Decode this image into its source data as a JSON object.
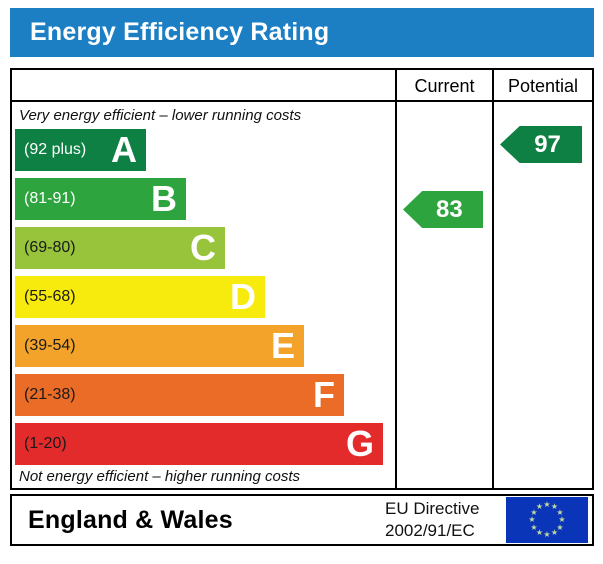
{
  "title": "Energy Efficiency Rating",
  "colors": {
    "title_bar": "#1c7ec3",
    "title_text": "#ffffff",
    "border": "#000000"
  },
  "table": {
    "columns": {
      "current": "Current",
      "potential": "Potential"
    },
    "caption_top": "Very energy efficient – lower running costs",
    "caption_bottom": "Not energy efficient – higher running costs"
  },
  "chart_data": {
    "type": "bar",
    "title": "Energy Efficiency Rating",
    "orientation": "horizontal",
    "bands": [
      {
        "letter": "A",
        "range_label": "(92 plus)",
        "min": 92,
        "max": 100,
        "color": "#0e8043",
        "label_color": "#ffffff"
      },
      {
        "letter": "B",
        "range_label": "(81-91)",
        "min": 81,
        "max": 91,
        "color": "#2ea43e",
        "label_color": "#ffffff"
      },
      {
        "letter": "C",
        "range_label": "(69-80)",
        "min": 69,
        "max": 80,
        "color": "#97c43b",
        "label_color": "#1a1a1a"
      },
      {
        "letter": "D",
        "range_label": "(55-68)",
        "min": 55,
        "max": 68,
        "color": "#f7ea0d",
        "label_color": "#1a1a1a"
      },
      {
        "letter": "E",
        "range_label": "(39-54)",
        "min": 39,
        "max": 54,
        "color": "#f3a22a",
        "label_color": "#1a1a1a"
      },
      {
        "letter": "F",
        "range_label": "(21-38)",
        "min": 21,
        "max": 38,
        "color": "#ea6c26",
        "label_color": "#1a1a1a"
      },
      {
        "letter": "G",
        "range_label": "(1-20)",
        "min": 1,
        "max": 20,
        "color": "#e42b2c",
        "label_color": "#1a1a1a"
      }
    ],
    "ratings": {
      "current": {
        "value": 83,
        "band": "B",
        "color": "#2ea43e"
      },
      "potential": {
        "value": 97,
        "band": "A",
        "color": "#0e8043"
      }
    }
  },
  "footer": {
    "region": "England & Wales",
    "directive_line1": "EU Directive",
    "directive_line2": "2002/91/EC",
    "eu_flag": {
      "background": "#0b35b8",
      "star_color": "#bfd99e",
      "star_count": 12,
      "star_glyph": "★"
    }
  }
}
